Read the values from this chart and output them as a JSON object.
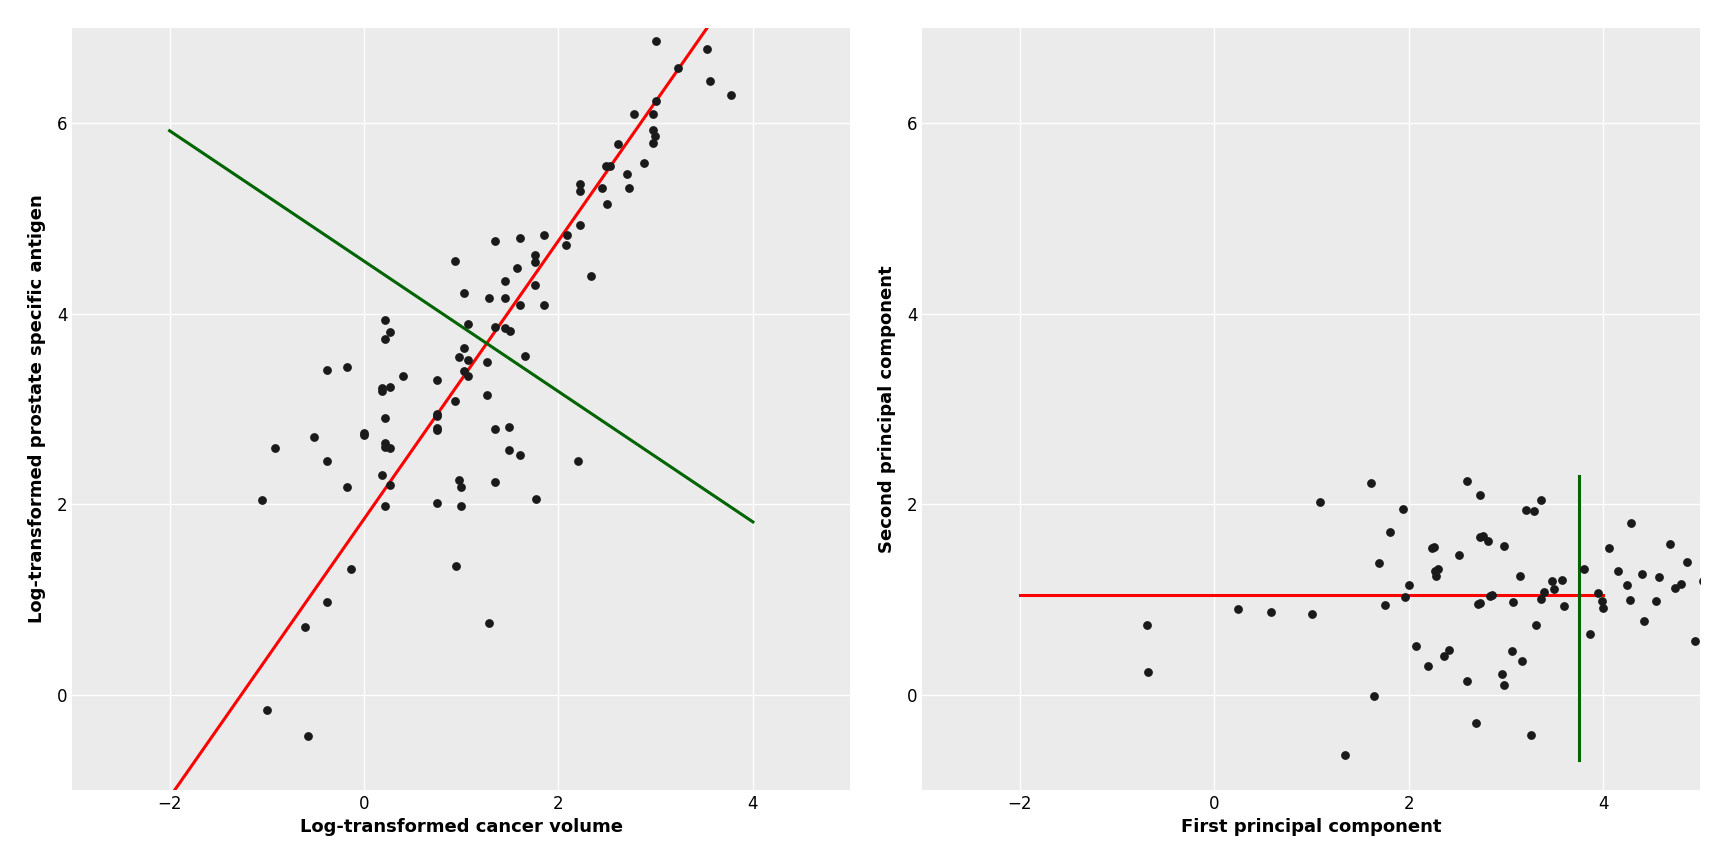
{
  "lcavol": [
    -0.5798185,
    -0.9942523,
    -0.5108256,
    1.764742,
    0.7514161,
    -1.0498221,
    0.7514161,
    0.9444015,
    -0.1783617,
    0.3987763,
    -0.3856625,
    -0.1783617,
    -0.6061358,
    0.2623643,
    0.9802581,
    0.0,
    1.348148,
    -0.3856625,
    0.9955735,
    -0.9208196,
    0.2623643,
    0.0,
    0.7514161,
    0.7514161,
    0.9955735,
    1.4929041,
    1.348148,
    0.1823216,
    -0.3856625,
    1.2669476,
    0.2151267,
    -0.1297135,
    0.935578,
    1.59938,
    0.7514161,
    0.2151267,
    1.0647107,
    0.1823216,
    0.9802581,
    1.0296194,
    0.2623643,
    0.1823216,
    0.2151267,
    0.7514161,
    0.2151267,
    1.2669476,
    1.0647107,
    1.6582281,
    1.0296194,
    0.2151267,
    0.2623643,
    1.348148,
    1.0647107,
    1.59938,
    1.2809338,
    1.446919,
    1.0296194,
    1.446919,
    1.5686159,
    0.935578,
    1.7578579,
    1.348148,
    1.59938,
    2.50148,
    1.2809338,
    1.4929041,
    0.2151267,
    2.1972246,
    1.5040774,
    1.7578579,
    1.7578579,
    1.8563691,
    1.446919,
    2.086178,
    2.0794415,
    2.2246271,
    2.2246271,
    2.7258658,
    2.3321196,
    1.8563691,
    2.4510051,
    2.2246271,
    2.7047481,
    2.4932055,
    2.5257286,
    2.8824123,
    2.6100697,
    2.9704145,
    2.9933701,
    2.9704145,
    2.9704145,
    2.7730685,
    3.0056826,
    3.7723661,
    3.5617072,
    3.2245152,
    3.5279338,
    3.0056826
  ],
  "lpsa": [
    -0.4307829,
    -0.1625189,
    2.7080502,
    2.0541237,
    2.7726006,
    2.0412203,
    2.0063507,
    1.3480731,
    2.1793407,
    3.3464154,
    0.970831,
    3.4399878,
    0.712944,
    2.1973757,
    2.2572612,
    2.744376,
    2.2300144,
    2.4510051,
    1.9810014,
    2.5902672,
    2.5903542,
    2.7202175,
    2.794416,
    2.9497322,
    2.179716,
    2.80998,
    2.7880929,
    3.2205831,
    3.4112361,
    3.1437069,
    1.9810014,
    1.3132621,
    3.0806765,
    2.5137354,
    3.300378,
    2.602131,
    3.339961,
    2.3025851,
    3.540367,
    3.401584,
    3.2308802,
    3.1867279,
    2.6390573,
    2.927301,
    2.908568,
    3.49127,
    3.510436,
    3.555348,
    3.6375862,
    3.7376696,
    3.8023011,
    3.8632813,
    3.8849798,
    4.0943446,
    4.158963,
    4.158963,
    4.2196926,
    4.3464155,
    4.4773369,
    4.5522089,
    4.6151205,
    4.7622666,
    4.795511,
    5.1474944,
    0.7514161,
    2.5649494,
    3.9312604,
    2.4510051,
    3.815305,
    4.304065,
    4.5418071,
    4.0864938,
    3.8480076,
    4.8285508,
    4.7185518,
    4.9346557,
    5.2832526,
    5.32301,
    4.3947784,
    4.8283138,
    5.32301,
    5.3565005,
    5.4680959,
    5.549902,
    5.549902,
    5.58244,
    5.7807213,
    5.78997,
    5.863692,
    5.9269298,
    6.08996,
    6.091475,
    6.229678,
    6.2890777,
    6.4369822,
    6.5793535,
    6.7785184,
    6.8586983
  ],
  "left_xlim": [
    -3,
    5
  ],
  "left_ylim": [
    -1,
    7
  ],
  "left_xticks": [
    -2,
    0,
    2,
    4
  ],
  "left_yticks": [
    0,
    2,
    4,
    6
  ],
  "left_xlabel": "Log-transformed cancer volume",
  "left_ylabel": "Log-transformed prostate specific antigen",
  "right_xlim": [
    -3,
    5
  ],
  "right_ylim": [
    -1,
    7
  ],
  "right_xticks": [
    -2,
    0,
    2,
    4
  ],
  "right_yticks": [
    0,
    2,
    4,
    6
  ],
  "right_xlabel": "First principal component",
  "right_ylabel": "Second principal component",
  "pc1_color": "#FF0000",
  "pc2_color": "#006400",
  "dot_color": "#1a1a1a",
  "dot_size": 28,
  "background_color": "#EBEBEB",
  "line_width": 2.2,
  "font_size": 13
}
